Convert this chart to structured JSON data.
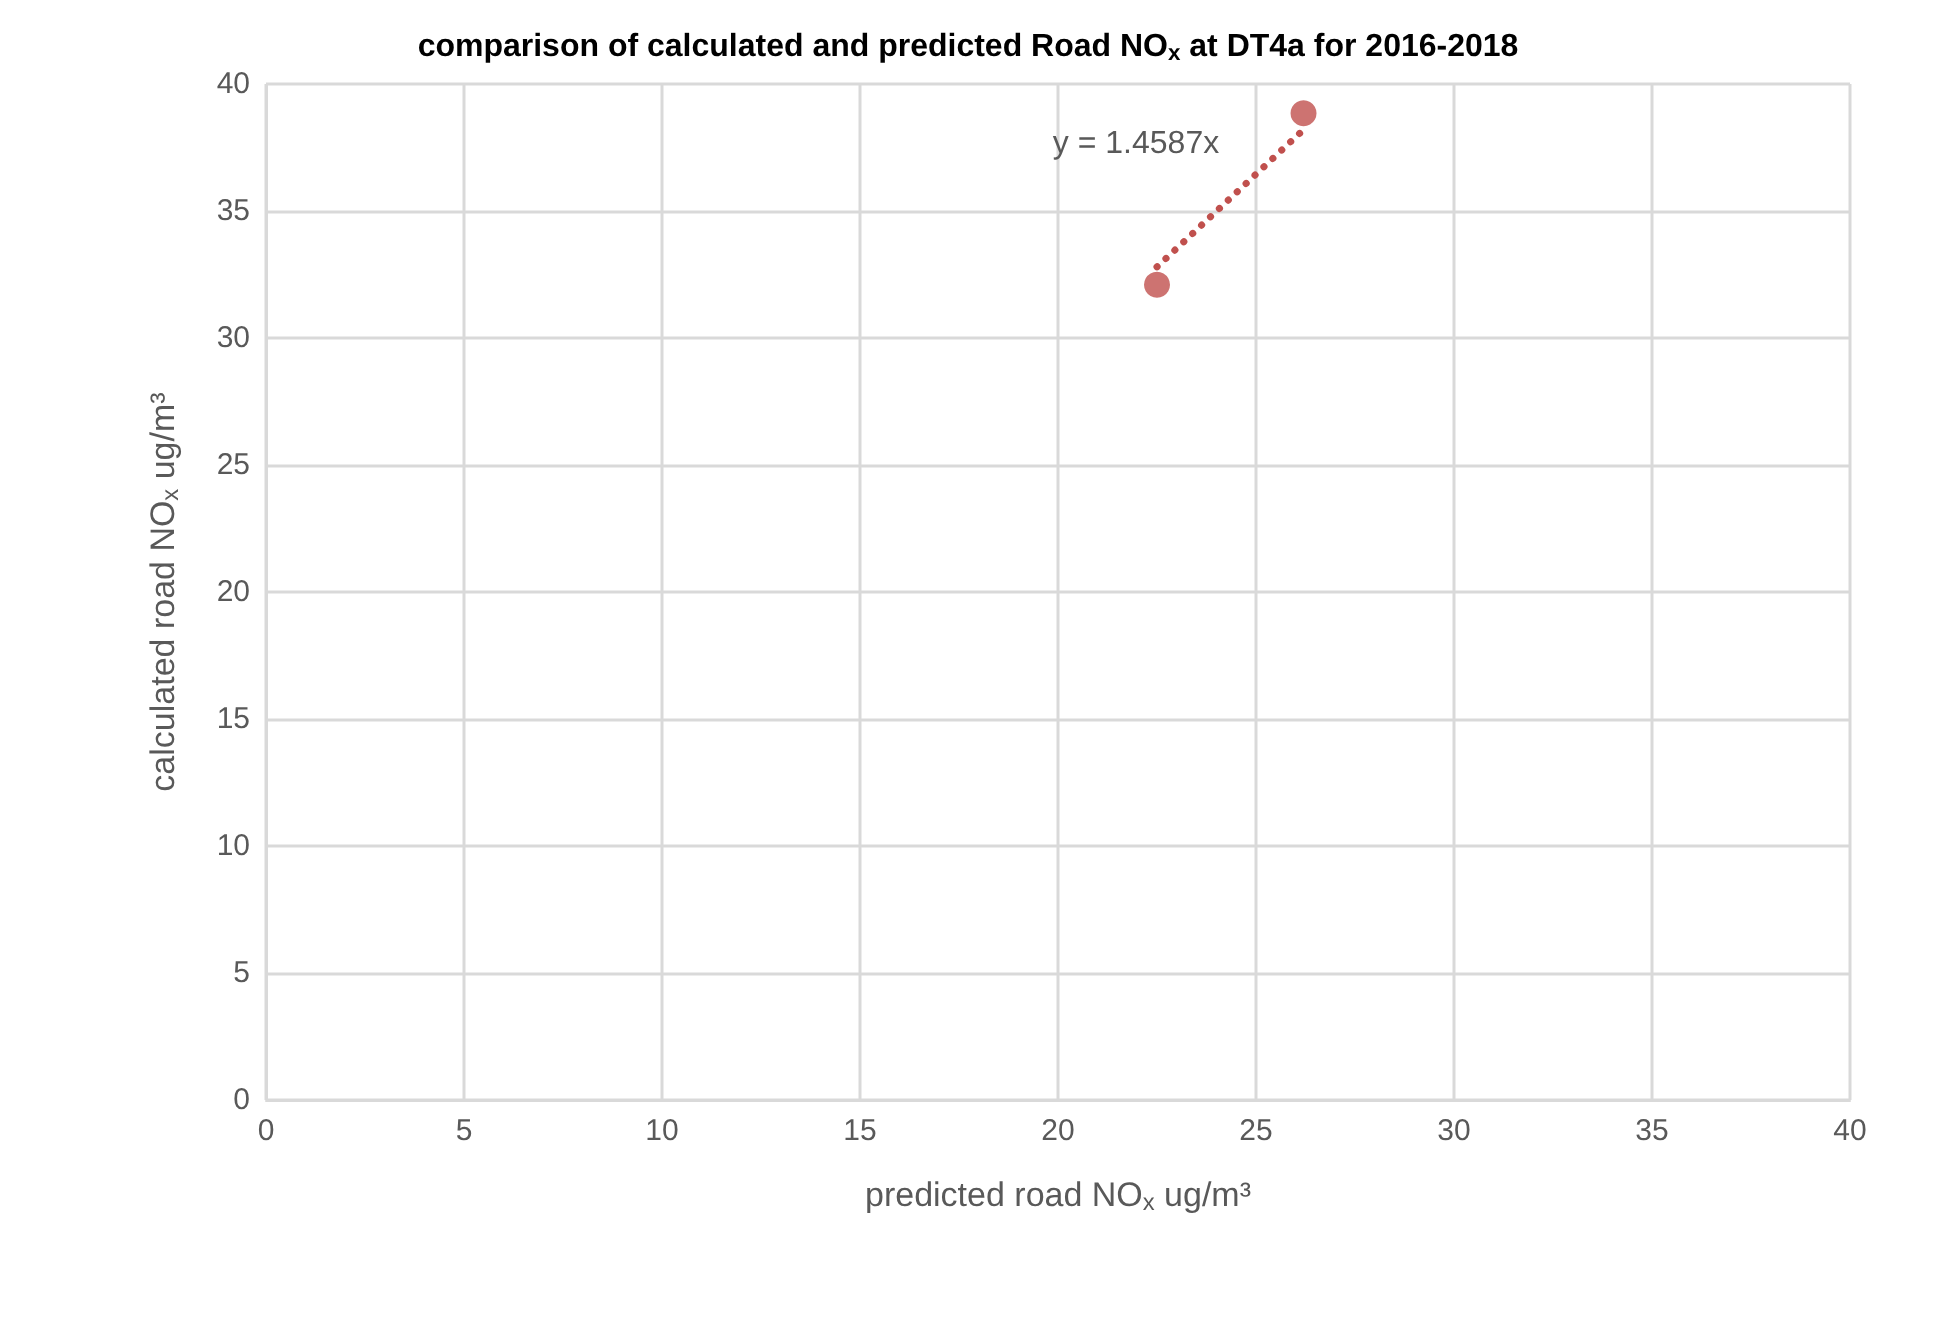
{
  "chart_data": {
    "type": "scatter",
    "title": "comparison of calculated and predicted Road NO$_{x}$ at DT4a for 2016-2018",
    "xlabel": "predicted road NO$_{x}$ ug/m³",
    "ylabel": "calculated road NO$_{x}$ ug/m³",
    "x": [
      22.5,
      26.2
    ],
    "series": [
      {
        "type": "scatter",
        "color": "#c0504d",
        "values": [
          32.1,
          38.85
        ],
        "marker": "circle"
      },
      {
        "type": "line",
        "color": "#c0504d",
        "values": [
          32.8,
          38.2
        ],
        "line_style": "dotted",
        "marker": "none"
      }
    ],
    "annotations": [
      "y = 1.4587x"
    ],
    "xlim": [
      0,
      40
    ],
    "xticks": [
      0,
      5,
      10,
      15,
      20,
      25,
      30,
      35,
      40
    ],
    "ylim": [
      0,
      40
    ],
    "yticks": [
      0,
      5,
      10,
      15,
      20,
      25,
      30,
      35,
      40
    ],
    "grid": true
  }
}
